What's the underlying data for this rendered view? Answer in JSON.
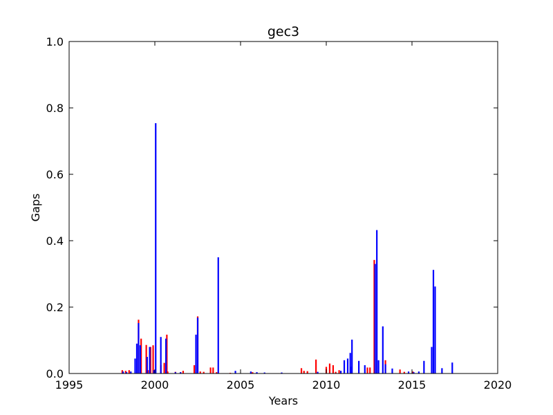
{
  "chart_data": {
    "type": "bar",
    "title": "gec3",
    "xlabel": "Years",
    "ylabel": "Gaps",
    "xlim": [
      1995,
      2020
    ],
    "ylim": [
      0,
      1.0
    ],
    "x_ticks": [
      1995,
      2000,
      2005,
      2010,
      2015,
      2020
    ],
    "x_tick_labels": [
      "1995",
      "2000",
      "2005",
      "2010",
      "2015",
      "2020"
    ],
    "y_ticks": [
      0,
      0.2,
      0.4,
      0.6,
      0.8,
      1.0
    ],
    "y_tick_labels": [
      "0.0",
      "0.2",
      "0.4",
      "0.6",
      "0.8",
      "1.0"
    ],
    "grid": false,
    "colors": {
      "red_series": "#ff0000",
      "blue_series": "#0000ff"
    },
    "series": [
      {
        "color": "#ff0000",
        "bars": [
          {
            "x": 1998.1,
            "y": 0.01
          },
          {
            "x": 1998.3,
            "y": 0.008
          },
          {
            "x": 1998.5,
            "y": 0.01
          },
          {
            "x": 1999.05,
            "y": 0.162
          },
          {
            "x": 1999.2,
            "y": 0.105
          },
          {
            "x": 1999.5,
            "y": 0.086
          },
          {
            "x": 1999.6,
            "y": 0.01
          },
          {
            "x": 1999.75,
            "y": 0.08
          },
          {
            "x": 1999.9,
            "y": 0.085
          },
          {
            "x": 2000.35,
            "y": 0.025
          },
          {
            "x": 2000.55,
            "y": 0.032
          },
          {
            "x": 2000.7,
            "y": 0.117
          },
          {
            "x": 2000.75,
            "y": 0.006
          },
          {
            "x": 2001.2,
            "y": 0.005
          },
          {
            "x": 2001.5,
            "y": 0.004
          },
          {
            "x": 2001.65,
            "y": 0.008
          },
          {
            "x": 2002.3,
            "y": 0.025
          },
          {
            "x": 2002.5,
            "y": 0.172
          },
          {
            "x": 2002.65,
            "y": 0.006
          },
          {
            "x": 2002.85,
            "y": 0.005
          },
          {
            "x": 2003.25,
            "y": 0.018
          },
          {
            "x": 2003.4,
            "y": 0.018
          },
          {
            "x": 2003.6,
            "y": 0.004
          },
          {
            "x": 2004.4,
            "y": 0.002
          },
          {
            "x": 2005.7,
            "y": 0.004
          },
          {
            "x": 2008.55,
            "y": 0.016
          },
          {
            "x": 2008.7,
            "y": 0.008
          },
          {
            "x": 2008.9,
            "y": 0.007
          },
          {
            "x": 2009.4,
            "y": 0.042
          },
          {
            "x": 2010.0,
            "y": 0.02
          },
          {
            "x": 2010.2,
            "y": 0.03
          },
          {
            "x": 2010.4,
            "y": 0.025
          },
          {
            "x": 2010.55,
            "y": 0.005
          },
          {
            "x": 2010.75,
            "y": 0.01
          },
          {
            "x": 2012.4,
            "y": 0.018
          },
          {
            "x": 2012.55,
            "y": 0.018
          },
          {
            "x": 2012.8,
            "y": 0.342
          },
          {
            "x": 2013.45,
            "y": 0.04
          },
          {
            "x": 2014.3,
            "y": 0.012
          },
          {
            "x": 2014.55,
            "y": 0.005
          },
          {
            "x": 2015.05,
            "y": 0.006
          }
        ]
      },
      {
        "color": "#0000ff",
        "bars": [
          {
            "x": 1998.15,
            "y": 0.006
          },
          {
            "x": 1998.35,
            "y": 0.004
          },
          {
            "x": 1998.6,
            "y": 0.006
          },
          {
            "x": 1998.85,
            "y": 0.045
          },
          {
            "x": 1998.95,
            "y": 0.09
          },
          {
            "x": 1999.05,
            "y": 0.152
          },
          {
            "x": 1999.15,
            "y": 0.085
          },
          {
            "x": 1999.55,
            "y": 0.05
          },
          {
            "x": 1999.7,
            "y": 0.08
          },
          {
            "x": 1999.95,
            "y": 0.01
          },
          {
            "x": 2000.05,
            "y": 0.754
          },
          {
            "x": 2000.35,
            "y": 0.11
          },
          {
            "x": 2000.65,
            "y": 0.105
          },
          {
            "x": 2001.2,
            "y": 0.004
          },
          {
            "x": 2001.5,
            "y": 0.004
          },
          {
            "x": 2002.4,
            "y": 0.117
          },
          {
            "x": 2002.5,
            "y": 0.168
          },
          {
            "x": 2003.7,
            "y": 0.35
          },
          {
            "x": 2004.7,
            "y": 0.008
          },
          {
            "x": 2005.6,
            "y": 0.006
          },
          {
            "x": 2005.95,
            "y": 0.004
          },
          {
            "x": 2006.4,
            "y": 0.003
          },
          {
            "x": 2007.4,
            "y": 0.003
          },
          {
            "x": 2009.5,
            "y": 0.005
          },
          {
            "x": 2010.85,
            "y": 0.008
          },
          {
            "x": 2011.05,
            "y": 0.04
          },
          {
            "x": 2011.25,
            "y": 0.045
          },
          {
            "x": 2011.4,
            "y": 0.062
          },
          {
            "x": 2011.5,
            "y": 0.102
          },
          {
            "x": 2011.45,
            "y": 0.02
          },
          {
            "x": 2011.9,
            "y": 0.038
          },
          {
            "x": 2012.25,
            "y": 0.025
          },
          {
            "x": 2012.85,
            "y": 0.33
          },
          {
            "x": 2012.95,
            "y": 0.432
          },
          {
            "x": 2013.05,
            "y": 0.04
          },
          {
            "x": 2013.3,
            "y": 0.142
          },
          {
            "x": 2013.45,
            "y": 0.028
          },
          {
            "x": 2013.85,
            "y": 0.015
          },
          {
            "x": 2014.8,
            "y": 0.006
          },
          {
            "x": 2015.1,
            "y": 0.004
          },
          {
            "x": 2015.4,
            "y": 0.006
          },
          {
            "x": 2015.7,
            "y": 0.038
          },
          {
            "x": 2016.15,
            "y": 0.08
          },
          {
            "x": 2016.25,
            "y": 0.312
          },
          {
            "x": 2016.35,
            "y": 0.262
          },
          {
            "x": 2016.75,
            "y": 0.016
          },
          {
            "x": 2017.35,
            "y": 0.033
          }
        ]
      }
    ]
  }
}
